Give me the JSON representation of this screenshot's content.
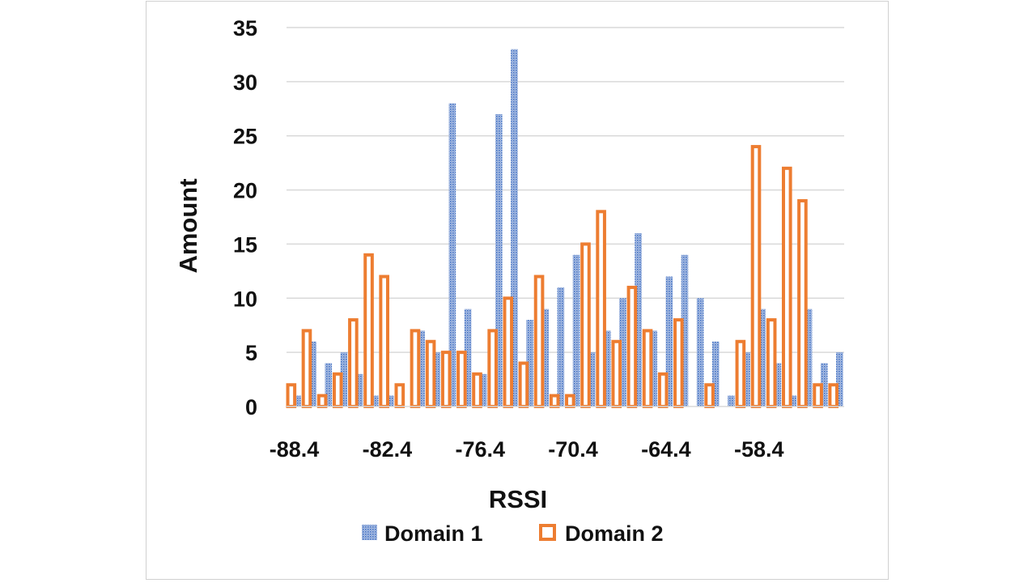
{
  "chart_data": {
    "type": "bar",
    "xlabel": "RSSI",
    "ylabel": "Amount",
    "ylim": [
      0,
      35
    ],
    "yticks": [
      0,
      5,
      10,
      15,
      20,
      25,
      30,
      35
    ],
    "x_tick_labels": [
      "-88.4",
      "-82.4",
      "-76.4",
      "-70.4",
      "-64.4",
      "-58.4"
    ],
    "x_tick_every": 6,
    "grid": true,
    "legend": "bottom",
    "categories": [
      -88.4,
      -87.4,
      -86.4,
      -85.4,
      -84.4,
      -83.4,
      -82.4,
      -81.4,
      -80.4,
      -79.4,
      -78.4,
      -77.4,
      -76.4,
      -75.4,
      -74.4,
      -73.4,
      -72.4,
      -71.4,
      -70.4,
      -69.4,
      -68.4,
      -67.4,
      -66.4,
      -65.4,
      -64.4,
      -63.4,
      -62.4,
      -61.4,
      -60.4,
      -59.4,
      -58.4,
      -57.4,
      -56.4,
      -55.4,
      -54.4,
      -53.4
    ],
    "series": [
      {
        "name": "Domain 1",
        "color": "#4472c4",
        "values": [
          1,
          6,
          4,
          5,
          3,
          1,
          1,
          0,
          7,
          5,
          28,
          9,
          3,
          27,
          33,
          8,
          9,
          11,
          14,
          5,
          7,
          10,
          16,
          7,
          12,
          14,
          10,
          6,
          1,
          5,
          9,
          4,
          1,
          9,
          4,
          5
        ]
      },
      {
        "name": "Domain 2",
        "color": "#ed7d31",
        "values": [
          2,
          7,
          1,
          3,
          8,
          14,
          12,
          2,
          7,
          6,
          5,
          5,
          3,
          7,
          10,
          4,
          12,
          1,
          1,
          15,
          18,
          6,
          11,
          7,
          3,
          8,
          0,
          2,
          0,
          6,
          24,
          8,
          22,
          19,
          2,
          2
        ]
      }
    ]
  }
}
